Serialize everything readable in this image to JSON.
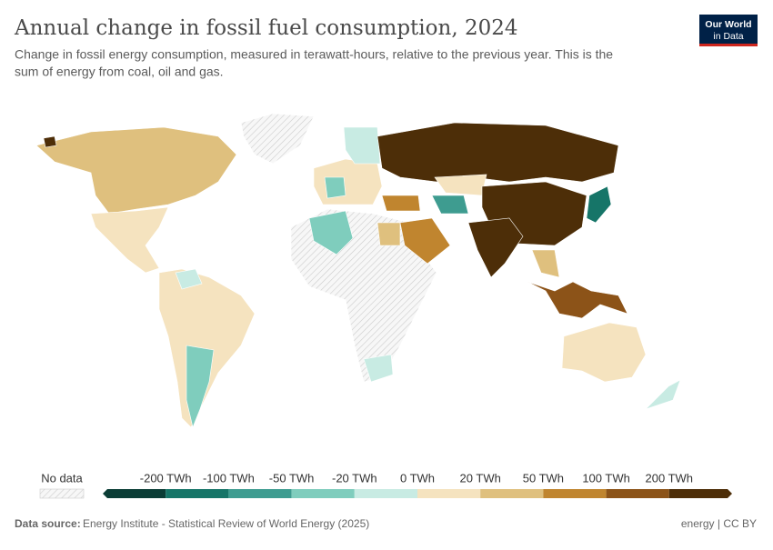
{
  "header": {
    "title": "Annual change in fossil fuel consumption, 2024",
    "subtitle_lines": [
      "Change in fossil energy consumption, measured in terawatt-hours, relative to the previous year. This is the",
      "sum of energy from coal, oil and gas."
    ],
    "logo_lines": [
      "Our World",
      "in Data"
    ]
  },
  "legend": {
    "no_data": "No data",
    "colors": [
      "#0b3d36",
      "#167568",
      "#3e9c90",
      "#7fcdbd",
      "#c8ebe3",
      "#f5e3bf",
      "#dfc07e",
      "#c0852f",
      "#8c5318",
      "#4d2e08"
    ],
    "labels": [
      "-200 TWh",
      "-100 TWh",
      "-50 TWh",
      "-20 TWh",
      "0 TWh",
      "20 TWh",
      "50 TWh",
      "100 TWh",
      "200 TWh"
    ]
  },
  "footer": {
    "source_label": "Data source:",
    "source": "Energy Institute - Statistical Review of World Energy (2025)",
    "license": "energy | CC BY"
  }
}
